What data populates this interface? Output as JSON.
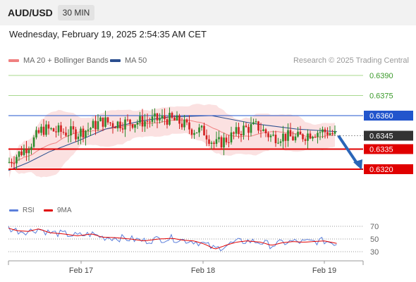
{
  "header": {
    "pair": "AUD/USD",
    "timeframe": "30 MIN"
  },
  "date_text": "Wednesday, February 19, 2025 2:54:35 AM CET",
  "legend": {
    "ma20": "MA 20 + Bollinger Bands",
    "ma20_color": "#f08080",
    "ma50": "MA 50",
    "ma50_color": "#2b4f8f"
  },
  "credit": "Research © 2025 Trading Central",
  "rsi_legend": {
    "rsi": "RSI",
    "rsi_color": "#5b7fdb",
    "ma": "9MA",
    "ma_color": "#e00000"
  },
  "chart_data": {
    "type": "candlestick",
    "x_ticks": [
      "Feb 17",
      "Feb 18",
      "Feb 19"
    ],
    "price_levels": [
      {
        "value": "0.6390",
        "kind": "target"
      },
      {
        "value": "0.6375",
        "kind": "target"
      },
      {
        "value": "0.6360",
        "kind": "pivot"
      },
      {
        "value": "0.6345",
        "kind": "last"
      },
      {
        "value": "0.6335",
        "kind": "support"
      },
      {
        "value": "0.6320",
        "kind": "support"
      }
    ],
    "last_price": 0.6345,
    "forecast": {
      "from": 0.6345,
      "to": 0.632,
      "direction": "down"
    },
    "rsi_ticks": [
      70,
      50,
      30
    ],
    "series": [
      {
        "name": "MA 20 + Bollinger Bands"
      },
      {
        "name": "MA 50"
      }
    ],
    "colors": {
      "up": "#2a8a2a",
      "down": "#d11f1f",
      "target": "#3a9a2a",
      "pivot": "#2255cc",
      "support": "#e00000",
      "last": "#333333",
      "band": "#f9d4d4"
    }
  }
}
